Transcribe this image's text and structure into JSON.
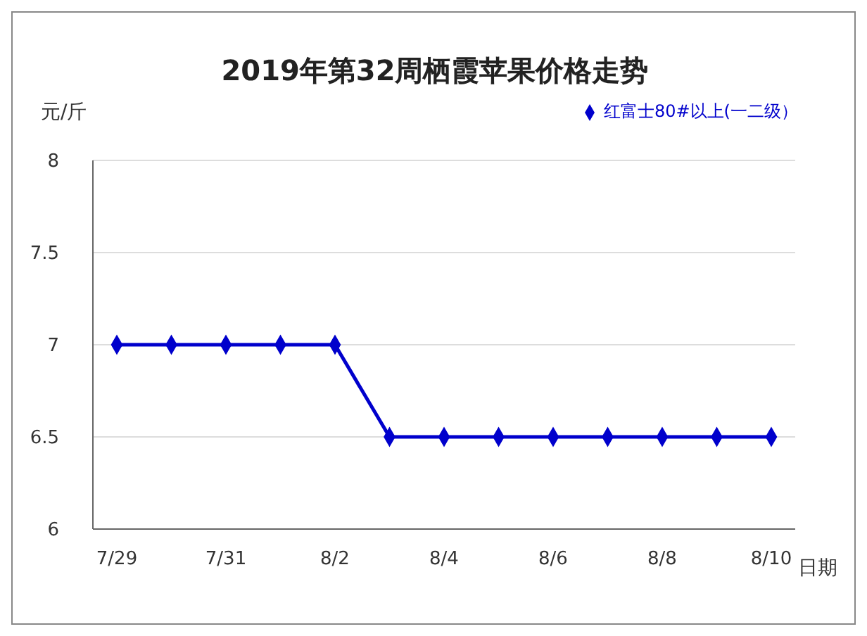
{
  "chart_data": {
    "type": "line",
    "title": "2019年第32周栖霞苹果价格走势",
    "xlabel": "日期",
    "ylabel": "元/斤",
    "categories": [
      "7/29",
      null,
      "7/31",
      null,
      "8/2",
      null,
      "8/4",
      null,
      "8/6",
      null,
      "8/8",
      null,
      "8/10"
    ],
    "series": [
      {
        "name": "红富士80#以上(一二级）",
        "color": "#0000cc",
        "values": [
          7,
          7,
          7,
          7,
          7,
          6.5,
          6.5,
          6.5,
          6.5,
          6.5,
          6.5,
          6.5,
          6.5
        ]
      }
    ],
    "ylim": [
      6,
      8
    ],
    "yticks": [
      6,
      6.5,
      7,
      7.5,
      8
    ],
    "grid": "y",
    "legend": "top right",
    "marker": "diamond",
    "line_style": "solid"
  }
}
